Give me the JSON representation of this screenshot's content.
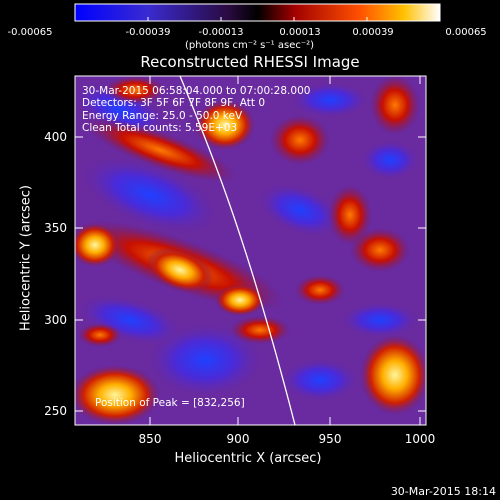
{
  "colorbar": {
    "tick_labels": [
      "-0.00065",
      "-0.00039",
      "-0.00013",
      "0.00013",
      "0.00039",
      "0.00065"
    ],
    "unit_label": "(photons cm⁻² s⁻¹ asec⁻²)",
    "colors": [
      "#0000ff",
      "#4b0082",
      "#000000",
      "#b00000",
      "#ff6000",
      "#ffd000",
      "#ffffff"
    ]
  },
  "title": "Reconstructed RHESSI Image",
  "annotations": {
    "time_range": "30-Mar-2015 06:58:04.000 to 07:00:28.000",
    "detectors": "Detectors: 3F 5F 6F 7F 8F 9F, Att 0",
    "energy": "Energy Range: 25.0 - 50.0 keV",
    "clean": "Clean     Total counts: 5.59E+03",
    "peak": "Position of Peak = [832,256]"
  },
  "axes": {
    "xlabel": "Heliocentric X (arcsec)",
    "ylabel": "Heliocentric Y (arcsec)",
    "xticks": [
      "850",
      "900",
      "950",
      "1000"
    ],
    "yticks": [
      "400",
      "350",
      "300",
      "250"
    ]
  },
  "timestamp": "30-Mar-2015 18:14",
  "chart_data": {
    "type": "heatmap",
    "title": "Reconstructed RHESSI Image",
    "xlabel": "Heliocentric X (arcsec)",
    "ylabel": "Heliocentric Y (arcsec)",
    "xlim": [
      810,
      1000
    ],
    "ylim": [
      240,
      430
    ],
    "colorbar_range": [
      -0.00065,
      0.00065
    ],
    "peak_position": [
      832,
      256
    ]
  }
}
